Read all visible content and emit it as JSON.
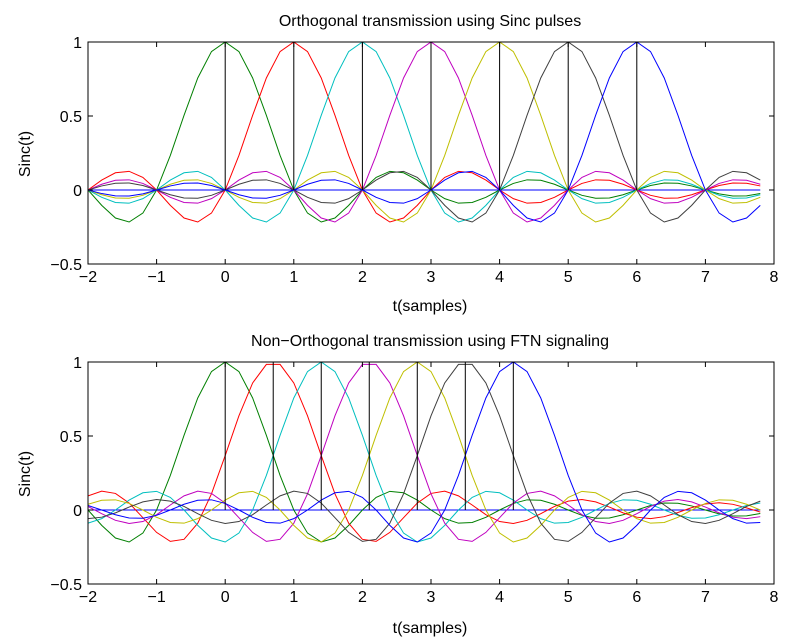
{
  "chart_data": [
    {
      "type": "line",
      "title": "Orthogonal transmission using Sinc pulses",
      "xlabel": "t(samples)",
      "ylabel": "Sinc(t)",
      "xlim": [
        -2,
        8
      ],
      "ylim": [
        -0.5,
        1
      ],
      "xticks": [
        "-2",
        "-1",
        "0",
        "1",
        "2",
        "3",
        "4",
        "5",
        "6",
        "7",
        "8"
      ],
      "yticks": [
        "-0.5",
        "0",
        "0.5",
        "1"
      ],
      "grid": false,
      "legend": "none",
      "pulse_spacing": 1,
      "pulse_centers": [
        0,
        1,
        2,
        3,
        4,
        5,
        6
      ],
      "x_range": [
        -2,
        7.8
      ],
      "series_colors": [
        "#007f00",
        "#ff0000",
        "#00bfbf",
        "#bf00bf",
        "#bfbf00",
        "#3f3f3f",
        "#0000ff"
      ],
      "stem_color": "#000000",
      "baseline_color": "#0000ff"
    },
    {
      "type": "line",
      "title": "Non−Orthogonal transmission using FTN signaling",
      "xlabel": "t(samples)",
      "ylabel": "Sinc(t)",
      "xlim": [
        -2,
        8
      ],
      "ylim": [
        -0.5,
        1
      ],
      "xticks": [
        "-2",
        "-1",
        "0",
        "1",
        "2",
        "3",
        "4",
        "5",
        "6",
        "7",
        "8"
      ],
      "yticks": [
        "-0.5",
        "0",
        "0.5",
        "1"
      ],
      "grid": false,
      "legend": "none",
      "pulse_spacing": 0.7,
      "pulse_centers": [
        0,
        0.7,
        1.4,
        2.1,
        2.8,
        3.5,
        4.2
      ],
      "x_range": [
        -2,
        7.8
      ],
      "series_colors": [
        "#007f00",
        "#ff0000",
        "#00bfbf",
        "#bf00bf",
        "#bfbf00",
        "#3f3f3f",
        "#0000ff"
      ],
      "stem_color": "#000000",
      "baseline_color": "#0000ff"
    }
  ]
}
